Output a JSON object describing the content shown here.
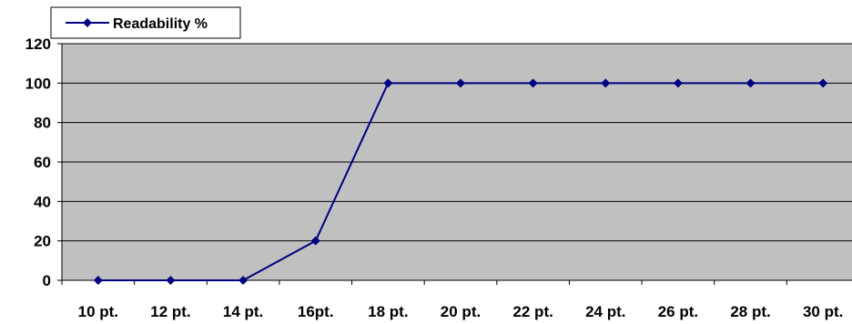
{
  "chart_data": {
    "type": "line",
    "categories": [
      "10 pt.",
      "12 pt.",
      "14 pt.",
      "16pt.",
      "18 pt.",
      "20 pt.",
      "22 pt.",
      "24 pt.",
      "26 pt.",
      "28 pt.",
      "30 pt."
    ],
    "series": [
      {
        "name": "Readability %",
        "values": [
          0,
          0,
          0,
          20,
          100,
          100,
          100,
          100,
          100,
          100,
          100
        ]
      }
    ],
    "ylim": [
      0,
      120
    ],
    "yticks": [
      0,
      20,
      40,
      60,
      80,
      100,
      120
    ],
    "grid": true,
    "legend_position": "top-left",
    "colors": {
      "series": "#000080",
      "plot_background": "#c0c0c0",
      "gridline": "#000000"
    }
  }
}
